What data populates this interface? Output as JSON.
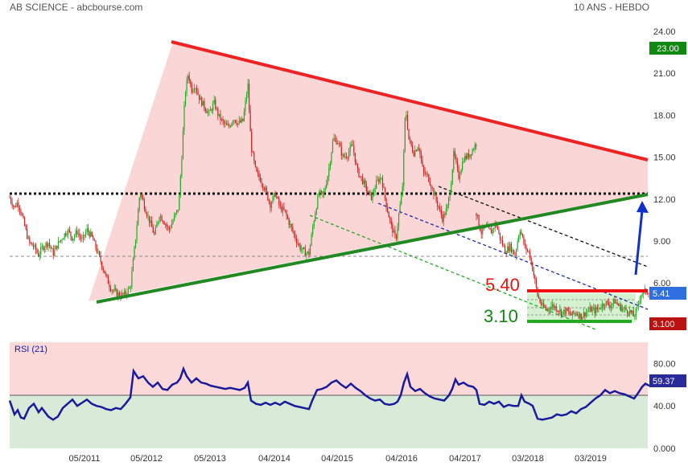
{
  "header": {
    "left_text": "AB SCIENCE - abcbourse.com",
    "right_text": "10 ANS - HEBDO"
  },
  "colors": {
    "up_candle": "#22aa22",
    "down_candle": "#cc2222",
    "resistance_line": "#ee2222",
    "support_line": "#228822",
    "target_arrow": "#1030cc",
    "rsi_line": "#1a1a9a",
    "triangle_fill": "#fbd6d6",
    "rsi_upper_band": "#fbd9d9",
    "rsi_lower_band": "#d8ead8"
  },
  "chart_data": [
    {
      "type": "candlestick",
      "title": "",
      "ylabel": "",
      "xlabel": "",
      "ylim": [
        0,
        24.5
      ],
      "yticks": [
        "24.00",
        "21.00",
        "18.00",
        "15.00",
        "12.00",
        "9.00",
        "6.00",
        "3.00"
      ],
      "x_labels": [
        "05/2011",
        "05/2012",
        "05/2013",
        "04/2014",
        "04/2015",
        "04/2016",
        "04/2017",
        "03/2018",
        "03/2019"
      ],
      "price_path": [
        [
          0,
          12.1
        ],
        [
          6,
          11.4
        ],
        [
          10,
          11.8
        ],
        [
          14,
          11.1
        ],
        [
          18,
          10.2
        ],
        [
          24,
          8.9
        ],
        [
          30,
          8.6
        ],
        [
          36,
          8.0
        ],
        [
          40,
          8.5
        ],
        [
          48,
          8.9
        ],
        [
          54,
          8.1
        ],
        [
          60,
          8.8
        ],
        [
          66,
          9.3
        ],
        [
          72,
          9.8
        ],
        [
          78,
          9.2
        ],
        [
          84,
          9.7
        ],
        [
          90,
          9.0
        ],
        [
          96,
          9.8
        ],
        [
          102,
          9.3
        ],
        [
          108,
          8.4
        ],
        [
          114,
          7.4
        ],
        [
          120,
          6.4
        ],
        [
          126,
          5.6
        ],
        [
          132,
          5.3
        ],
        [
          138,
          5.1
        ],
        [
          144,
          5.2
        ],
        [
          150,
          5.7
        ],
        [
          156,
          8.9
        ],
        [
          162,
          12.6
        ],
        [
          168,
          11.4
        ],
        [
          174,
          10.4
        ],
        [
          180,
          9.4
        ],
        [
          186,
          10.9
        ],
        [
          192,
          10.4
        ],
        [
          198,
          9.8
        ],
        [
          204,
          10.6
        ],
        [
          210,
          11.4
        ],
        [
          214,
          15.2
        ],
        [
          218,
          19.6
        ],
        [
          222,
          21.0
        ],
        [
          226,
          19.8
        ],
        [
          230,
          20.2
        ],
        [
          236,
          19.2
        ],
        [
          242,
          18.6
        ],
        [
          248,
          18.1
        ],
        [
          254,
          18.9
        ],
        [
          260,
          17.9
        ],
        [
          266,
          17.4
        ],
        [
          272,
          17.1
        ],
        [
          278,
          17.8
        ],
        [
          284,
          17.4
        ],
        [
          290,
          17.6
        ],
        [
          296,
          20.2
        ],
        [
          300,
          15.8
        ],
        [
          306,
          13.9
        ],
        [
          312,
          13.4
        ],
        [
          318,
          12.6
        ],
        [
          324,
          11.6
        ],
        [
          330,
          12.4
        ],
        [
          336,
          11.4
        ],
        [
          342,
          11.1
        ],
        [
          348,
          10.2
        ],
        [
          354,
          9.4
        ],
        [
          360,
          8.6
        ],
        [
          366,
          8.2
        ],
        [
          372,
          8.1
        ],
        [
          378,
          10.5
        ],
        [
          384,
          12.4
        ],
        [
          390,
          12.3
        ],
        [
          396,
          13.9
        ],
        [
          402,
          16.3
        ],
        [
          408,
          16.1
        ],
        [
          414,
          15.0
        ],
        [
          420,
          15.2
        ],
        [
          426,
          15.9
        ],
        [
          432,
          14.0
        ],
        [
          438,
          13.4
        ],
        [
          444,
          12.6
        ],
        [
          450,
          12.1
        ],
        [
          456,
          13.2
        ],
        [
          462,
          13.6
        ],
        [
          468,
          11.6
        ],
        [
          474,
          10.1
        ],
        [
          480,
          9.1
        ],
        [
          484,
          11.1
        ],
        [
          488,
          12.6
        ],
        [
          492,
          18.6
        ],
        [
          496,
          16.3
        ],
        [
          502,
          15.3
        ],
        [
          508,
          15.9
        ],
        [
          514,
          13.9
        ],
        [
          520,
          13.6
        ],
        [
          526,
          12.6
        ],
        [
          532,
          11.6
        ],
        [
          538,
          10.6
        ],
        [
          544,
          11.4
        ],
        [
          548,
          12.9
        ],
        [
          552,
          15.3
        ],
        [
          558,
          13.6
        ],
        [
          564,
          14.9
        ],
        [
          570,
          15.1
        ],
        [
          576,
          15.6
        ],
        [
          580,
          16.0
        ]
      ],
      "price_path_2": [
        [
          580,
          11.0
        ],
        [
          586,
          9.6
        ],
        [
          592,
          10.0
        ],
        [
          598,
          9.6
        ],
        [
          604,
          10.3
        ],
        [
          610,
          9.1
        ],
        [
          616,
          8.3
        ],
        [
          622,
          8.6
        ],
        [
          628,
          8.0
        ],
        [
          634,
          9.9
        ],
        [
          640,
          8.6
        ],
        [
          646,
          8.1
        ],
        [
          652,
          6.4
        ],
        [
          656,
          5.1
        ],
        [
          662,
          4.3
        ],
        [
          668,
          4.1
        ],
        [
          674,
          4.4
        ],
        [
          680,
          4.2
        ],
        [
          686,
          3.9
        ],
        [
          692,
          4.0
        ],
        [
          698,
          3.7
        ],
        [
          704,
          3.9
        ],
        [
          710,
          3.6
        ],
        [
          716,
          3.9
        ],
        [
          722,
          4.1
        ],
        [
          728,
          4.0
        ],
        [
          734,
          4.3
        ],
        [
          740,
          4.6
        ],
        [
          746,
          4.4
        ],
        [
          752,
          4.7
        ],
        [
          758,
          4.3
        ],
        [
          764,
          4.1
        ],
        [
          770,
          4.0
        ],
        [
          776,
          3.6
        ],
        [
          780,
          4.2
        ],
        [
          784,
          5.2
        ],
        [
          790,
          5.4
        ],
        [
          795,
          5.4
        ]
      ],
      "level_labels": {
        "resistance": "5.40",
        "support": "3.10"
      },
      "price_tags": [
        {
          "value": "23.00",
          "color": "#118811"
        },
        {
          "value": "5.41",
          "color": "#2f6fe0"
        },
        {
          "value": "3.100",
          "color": "#bb1111"
        }
      ]
    },
    {
      "type": "line",
      "title": "RSI (21)",
      "ylabel": "",
      "xlabel": "",
      "ylim": [
        0,
        100
      ],
      "yticks": [
        "80.00",
        "40.00",
        "0.000"
      ],
      "midline": 50,
      "last_value": "59.37",
      "series": [
        {
          "values": [
            [
              0,
              45
            ],
            [
              6,
              32
            ],
            [
              10,
              36
            ],
            [
              14,
              29
            ],
            [
              18,
              28
            ],
            [
              24,
              38
            ],
            [
              30,
              42
            ],
            [
              36,
              34
            ],
            [
              40,
              38
            ],
            [
              48,
              30
            ],
            [
              54,
              27
            ],
            [
              60,
              30
            ],
            [
              66,
              38
            ],
            [
              72,
              42
            ],
            [
              78,
              46
            ],
            [
              84,
              40
            ],
            [
              90,
              43
            ],
            [
              96,
              46
            ],
            [
              102,
              42
            ],
            [
              108,
              40
            ],
            [
              114,
              39
            ],
            [
              120,
              37
            ],
            [
              126,
              36
            ],
            [
              132,
              38
            ],
            [
              138,
              37
            ],
            [
              144,
              42
            ],
            [
              150,
              48
            ],
            [
              154,
              73
            ],
            [
              160,
              66
            ],
            [
              166,
              68
            ],
            [
              172,
              62
            ],
            [
              178,
              58
            ],
            [
              184,
              62
            ],
            [
              190,
              56
            ],
            [
              196,
              55
            ],
            [
              202,
              60
            ],
            [
              208,
              62
            ],
            [
              212,
              66
            ],
            [
              216,
              75
            ],
            [
              220,
              68
            ],
            [
              226,
              62
            ],
            [
              232,
              66
            ],
            [
              238,
              62
            ],
            [
              244,
              61
            ],
            [
              250,
              59
            ],
            [
              256,
              58
            ],
            [
              262,
              57
            ],
            [
              268,
              56
            ],
            [
              274,
              57
            ],
            [
              280,
              56
            ],
            [
              286,
              55
            ],
            [
              292,
              57
            ],
            [
              296,
              62
            ],
            [
              300,
              45
            ],
            [
              306,
              42
            ],
            [
              312,
              41
            ],
            [
              318,
              43
            ],
            [
              324,
              41
            ],
            [
              330,
              43
            ],
            [
              336,
              41
            ],
            [
              342,
              44
            ],
            [
              348,
              42
            ],
            [
              354,
              40
            ],
            [
              360,
              39
            ],
            [
              366,
              38
            ],
            [
              372,
              37
            ],
            [
              376,
              45
            ],
            [
              382,
              55
            ],
            [
              388,
              56
            ],
            [
              394,
              58
            ],
            [
              400,
              62
            ],
            [
              406,
              64
            ],
            [
              412,
              60
            ],
            [
              418,
              57
            ],
            [
              424,
              61
            ],
            [
              430,
              57
            ],
            [
              436,
              54
            ],
            [
              442,
              50
            ],
            [
              448,
              47
            ],
            [
              454,
              45
            ],
            [
              460,
              46
            ],
            [
              466,
              42
            ],
            [
              472,
              41
            ],
            [
              478,
              42
            ],
            [
              482,
              44
            ],
            [
              486,
              50
            ],
            [
              490,
              62
            ],
            [
              494,
              70
            ],
            [
              498,
              58
            ],
            [
              504,
              54
            ],
            [
              510,
              56
            ],
            [
              516,
              52
            ],
            [
              522,
              49
            ],
            [
              528,
              47
            ],
            [
              534,
              46
            ],
            [
              540,
              45
            ],
            [
              546,
              50
            ],
            [
              550,
              56
            ],
            [
              554,
              65
            ],
            [
              558,
              60
            ],
            [
              564,
              62
            ],
            [
              570,
              59
            ],
            [
              576,
              58
            ],
            [
              580,
              55
            ],
            [
              584,
              42
            ],
            [
              590,
              41
            ],
            [
              596,
              44
            ],
            [
              602,
              42
            ],
            [
              608,
              44
            ],
            [
              614,
              39
            ],
            [
              620,
              41
            ],
            [
              626,
              40
            ],
            [
              632,
              40
            ],
            [
              636,
              50
            ],
            [
              640,
              44
            ],
            [
              646,
              42
            ],
            [
              650,
              40
            ],
            [
              656,
              28
            ],
            [
              662,
              27
            ],
            [
              668,
              28
            ],
            [
              674,
              29
            ],
            [
              680,
              32
            ],
            [
              686,
              31
            ],
            [
              692,
              32
            ],
            [
              698,
              35
            ],
            [
              704,
              33
            ],
            [
              710,
              37
            ],
            [
              716,
              39
            ],
            [
              722,
              43
            ],
            [
              728,
              47
            ],
            [
              734,
              50
            ],
            [
              740,
              55
            ],
            [
              746,
              52
            ],
            [
              752,
              54
            ],
            [
              758,
              52
            ],
            [
              764,
              51
            ],
            [
              770,
              49
            ],
            [
              776,
              47
            ],
            [
              780,
              51
            ],
            [
              786,
              58
            ],
            [
              790,
              61
            ],
            [
              795,
              59
            ]
          ]
        }
      ]
    }
  ]
}
